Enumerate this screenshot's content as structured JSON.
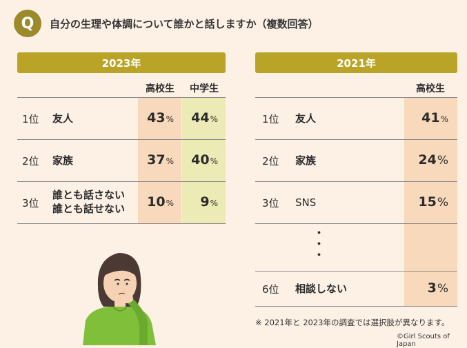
{
  "question": {
    "badge": "Q",
    "title": "自分の生理や体調について誰かと話しますか（複数回答）"
  },
  "left": {
    "year": "2023年",
    "col_high": "高校生",
    "col_middle": "中学生",
    "rows": [
      {
        "rank": "1位",
        "label_line1": "友人",
        "label_line2": "",
        "high": "43",
        "middle": "44"
      },
      {
        "rank": "2位",
        "label_line1": "家族",
        "label_line2": "",
        "high": "37",
        "middle": "40"
      },
      {
        "rank": "3位",
        "label_line1": "誰とも話さない",
        "label_line2": "誰とも話せない",
        "high": "10",
        "middle": "9"
      }
    ]
  },
  "right": {
    "year": "2021年",
    "col_high": "高校生",
    "rows": [
      {
        "rank": "1位",
        "label": "友人",
        "high": "41"
      },
      {
        "rank": "2位",
        "label": "家族",
        "high": "24"
      },
      {
        "rank": "3位",
        "label": "SNS",
        "high": "15"
      },
      {
        "rank": "6位",
        "label": "相談しない",
        "high": "3"
      }
    ],
    "dots": [
      "・",
      "・",
      "・"
    ]
  },
  "pct": "%",
  "note": "※ 2021年と 2023年の調査では選択肢が異なります。",
  "credit": "©Girl Scouts of Japan"
}
